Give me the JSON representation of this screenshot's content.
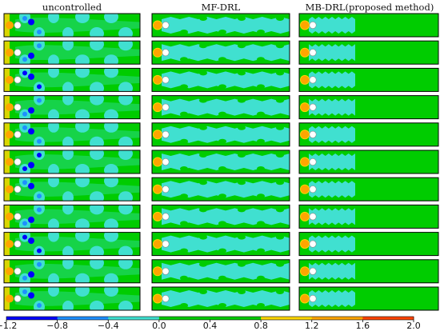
{
  "columns": [
    {
      "title": "uncontrolled",
      "mode": "uncontrolled"
    },
    {
      "title": "MF-DRL",
      "mode": "mf"
    },
    {
      "title": "MB-DRL(proposed method)",
      "mode": "mb"
    }
  ],
  "rows": 11,
  "colorbar": {
    "ticks": [
      "−1.2",
      "−0.8",
      "−0.4",
      "0.0",
      "0.4",
      "0.8",
      "1.2",
      "1.6",
      "2.0"
    ],
    "colors": [
      "#0000ff",
      "#1e90ff",
      "#40e0d0",
      "#00cc00",
      "#00cc00",
      "#ffd700",
      "#ffa500",
      "#ff4500"
    ]
  },
  "field_colors": {
    "background": "#00cc00",
    "wake": "#40e0d0",
    "core": "#1e90ff",
    "strong": "#0000ff",
    "inlet": "#ffd700",
    "inlet_edge": "#ffa500"
  }
}
